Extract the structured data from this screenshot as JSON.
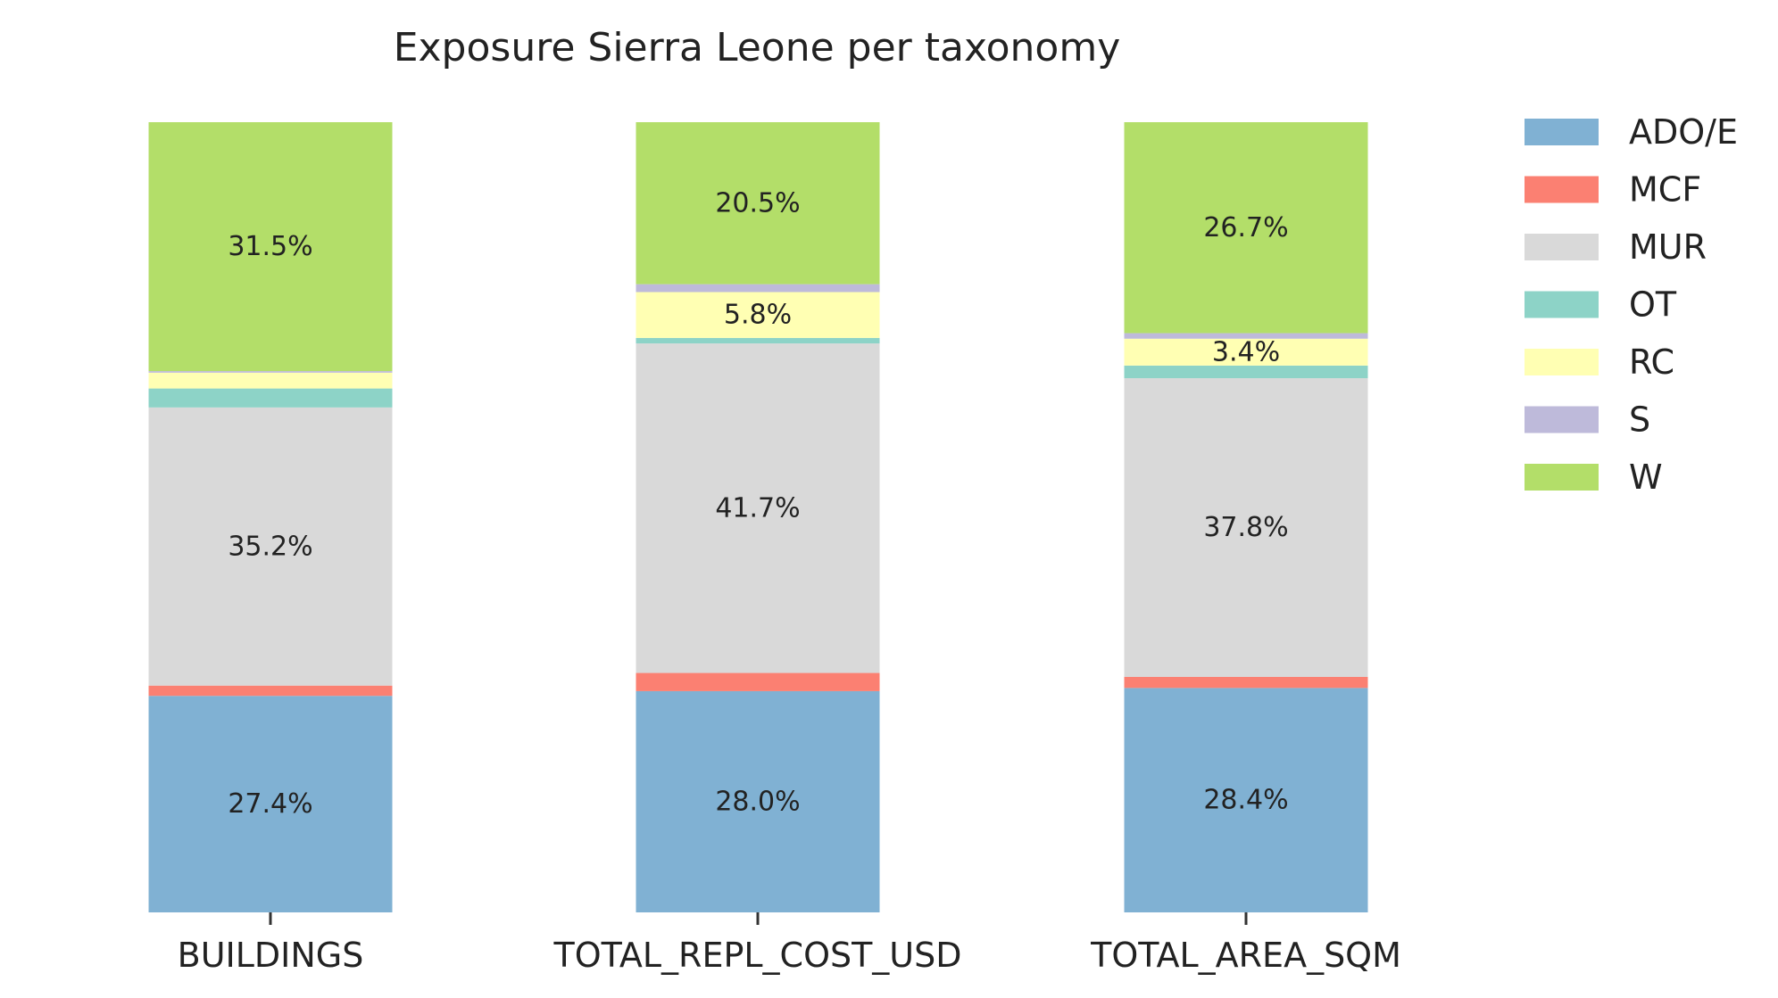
{
  "chart_data": {
    "type": "bar",
    "stacked": true,
    "normalized_percent": true,
    "title": "Exposure Sierra Leone per taxonomy",
    "xlabel": "",
    "ylabel": "",
    "ylim": [
      0,
      100
    ],
    "categories": [
      "BUILDINGS",
      "TOTAL_REPL_COST_USD",
      "TOTAL_AREA_SQM"
    ],
    "series": [
      {
        "name": "ADO/E",
        "color": "#80b1d3",
        "values": [
          27.4,
          28.0,
          28.4
        ]
      },
      {
        "name": "MCF",
        "color": "#fb8072",
        "values": [
          1.3,
          2.3,
          1.4
        ]
      },
      {
        "name": "MUR",
        "color": "#d9d9d9",
        "values": [
          35.2,
          41.7,
          37.8
        ]
      },
      {
        "name": "OT",
        "color": "#8dd3c7",
        "values": [
          2.4,
          0.7,
          1.6
        ]
      },
      {
        "name": "RC",
        "color": "#ffffb3",
        "values": [
          2.0,
          5.8,
          3.4
        ]
      },
      {
        "name": "S",
        "color": "#bebada",
        "values": [
          0.2,
          1.0,
          0.7
        ]
      },
      {
        "name": "W",
        "color": "#b3de69",
        "values": [
          31.5,
          20.5,
          26.7
        ]
      }
    ],
    "data_labels": [
      {
        "category": "BUILDINGS",
        "series": "ADO/E",
        "text": "27.4%"
      },
      {
        "category": "BUILDINGS",
        "series": "MUR",
        "text": "35.2%"
      },
      {
        "category": "BUILDINGS",
        "series": "W",
        "text": "31.5%"
      },
      {
        "category": "TOTAL_REPL_COST_USD",
        "series": "ADO/E",
        "text": "28.0%"
      },
      {
        "category": "TOTAL_REPL_COST_USD",
        "series": "MUR",
        "text": "41.7%"
      },
      {
        "category": "TOTAL_REPL_COST_USD",
        "series": "RC",
        "text": "5.8%"
      },
      {
        "category": "TOTAL_REPL_COST_USD",
        "series": "W",
        "text": "20.5%"
      },
      {
        "category": "TOTAL_AREA_SQM",
        "series": "ADO/E",
        "text": "28.4%"
      },
      {
        "category": "TOTAL_AREA_SQM",
        "series": "MUR",
        "text": "37.8%"
      },
      {
        "category": "TOTAL_AREA_SQM",
        "series": "RC",
        "text": "3.4%"
      },
      {
        "category": "TOTAL_AREA_SQM",
        "series": "W",
        "text": "26.7%"
      }
    ],
    "legend": {
      "position": "right"
    },
    "grid": false
  }
}
